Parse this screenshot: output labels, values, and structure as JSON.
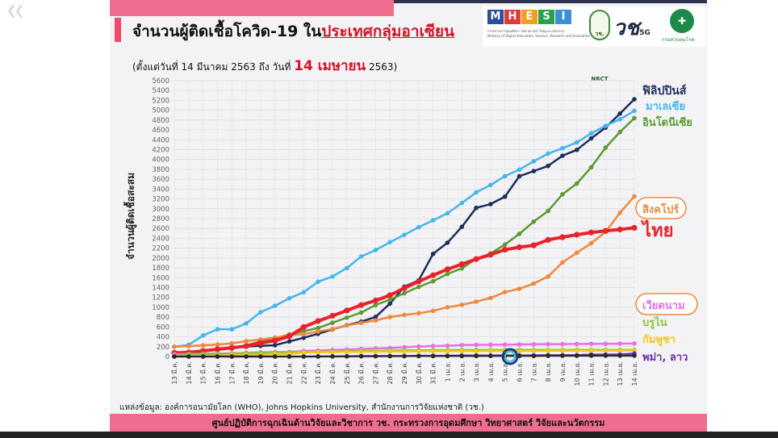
{
  "header": {
    "title_prefix": "จำนวนผู้ติดเชื้อโควิด-19 ใน",
    "title_highlight": "ประเทศกลุ่มอาเซียน",
    "subtitle_prefix": "(ตั้งแต่วันที่ 14 มีนาคม 2563 ถึง วันที่ ",
    "subtitle_date": "14 เมษายน",
    "subtitle_suffix": " 2563)"
  },
  "logos": {
    "mhesi_letters": [
      "M",
      "H",
      "E",
      "S",
      "I"
    ],
    "mhesi_colors": [
      "#2a4da0",
      "#e23a3a",
      "#f0a020",
      "#2aa04a",
      "#3a8fd8"
    ],
    "mhesi_caption_1": "กระทรวงการอุดมศึกษา วิทยาศาสตร์ วิจัยและนวัตกรรม",
    "mhesi_caption_2": "Ministry of Higher Education, Science, Research and Innovation",
    "nrct_text": "วช. NRCT",
    "brand_text": "วช",
    "brand_sub": "5G",
    "ddc_caption": "กรมควบคุมโรค"
  },
  "source": "แหล่งข้อมูล: องค์การอนามัยโลก (WHO), Johns Hopkins University, สำนักงานการวิจัยแห่งชาติ (วช.)",
  "footer": "ศูนย์ปฏิบัติการฉุกเฉินด้านวิจัยและวิชาการ   วช.   กระทรวงการอุดมศึกษา วิทยาศาสตร์ วิจัยและนวัตกรรม",
  "colors": {
    "accent_pink": "#ef6d8f",
    "title_red": "#d8102a",
    "dark_navy": "#2d3150"
  },
  "chart_data": {
    "type": "line",
    "ylabel": "จำนวนผู้ติดเชื้อสะสม",
    "ylim": [
      0,
      5600
    ],
    "ytick_step": 200,
    "grid": true,
    "categories": [
      "13 มี.ค.",
      "14 มี.ค.",
      "15 มี.ค.",
      "16 มี.ค.",
      "17 มี.ค.",
      "18 มี.ค.",
      "19 มี.ค.",
      "20 มี.ค.",
      "21 มี.ค.",
      "22 มี.ค.",
      "23 มี.ค.",
      "24 มี.ค.",
      "25 มี.ค.",
      "26 มี.ค.",
      "27 มี.ค.",
      "28 มี.ค.",
      "29 มี.ค.",
      "30 มี.ค.",
      "31 มี.ค.",
      "1 เม.ย.",
      "2 เม.ย.",
      "3 เม.ย.",
      "4 เม.ย.",
      "5 เม.ย.",
      "6 เม.ย.",
      "7 เม.ย.",
      "8 เม.ย.",
      "9 เม.ย.",
      "10 เม.ย.",
      "11 เม.ย.",
      "12 เม.ย.",
      "13 เม.ย.",
      "14 เม.ย."
    ],
    "series": [
      {
        "name": "ฟิลิปปินส์",
        "color": "#1f2f5c",
        "width": 2.5,
        "values": [
          64,
          64,
          111,
          140,
          187,
          202,
          217,
          230,
          307,
          380,
          462,
          552,
          636,
          707,
          803,
          1075,
          1418,
          1546,
          2084,
          2311,
          2633,
          3018,
          3094,
          3246,
          3660,
          3764,
          3870,
          4076,
          4195,
          4428,
          4648,
          4932,
          5223
        ]
      },
      {
        "name": "มาเลเซีย",
        "color": "#48b4ee",
        "width": 2.5,
        "values": [
          197,
          238,
          428,
          553,
          553,
          673,
          900,
          1030,
          1183,
          1306,
          1518,
          1624,
          1796,
          2031,
          2161,
          2320,
          2470,
          2626,
          2766,
          2908,
          3116,
          3333,
          3483,
          3662,
          3793,
          3963,
          4119,
          4228,
          4346,
          4530,
          4683,
          4817,
          4987
        ]
      },
      {
        "name": "อินโดนีเซีย",
        "color": "#5c9a32",
        "width": 2.5,
        "values": [
          69,
          96,
          117,
          134,
          172,
          227,
          309,
          369,
          450,
          514,
          579,
          686,
          790,
          893,
          1046,
          1155,
          1285,
          1414,
          1528,
          1677,
          1790,
          1986,
          2092,
          2273,
          2491,
          2738,
          2956,
          3293,
          3512,
          3842,
          4241,
          4557,
          4839
        ]
      },
      {
        "name": "สิงคโปร์",
        "color": "#f0873c",
        "width": 2.5,
        "values": [
          200,
          212,
          226,
          243,
          266,
          313,
          345,
          385,
          432,
          455,
          509,
          558,
          631,
          683,
          732,
          802,
          844,
          879,
          926,
          1000,
          1049,
          1114,
          1189,
          1309,
          1375,
          1481,
          1623,
          1910,
          2108,
          2299,
          2532,
          2918,
          3252
        ]
      },
      {
        "name": "ไทย",
        "color": "#e8222a",
        "width": 4,
        "values": [
          75,
          82,
          114,
          147,
          177,
          212,
          272,
          322,
          411,
          599,
          721,
          827,
          934,
          1045,
          1136,
          1245,
          1388,
          1524,
          1651,
          1771,
          1875,
          1978,
          2067,
          2169,
          2220,
          2258,
          2369,
          2423,
          2473,
          2518,
          2551,
          2579,
          2613
        ]
      },
      {
        "name": "เวียดนาม",
        "color": "#e870e0",
        "width": 2.5,
        "values": [
          47,
          53,
          56,
          61,
          66,
          76,
          85,
          91,
          94,
          113,
          123,
          134,
          141,
          153,
          163,
          174,
          188,
          203,
          212,
          218,
          233,
          237,
          240,
          241,
          245,
          249,
          251,
          251,
          255,
          257,
          258,
          262,
          265
        ]
      },
      {
        "name": "บรูไน",
        "color": "#88c540",
        "width": 2.5,
        "values": [
          11,
          50,
          50,
          54,
          56,
          68,
          75,
          78,
          83,
          88,
          91,
          104,
          109,
          114,
          115,
          120,
          126,
          127,
          129,
          131,
          133,
          134,
          135,
          135,
          135,
          136,
          136,
          135,
          136,
          136,
          136,
          136,
          136
        ]
      },
      {
        "name": "กัมพูชา",
        "color": "#f5c518",
        "width": 2.5,
        "values": [
          5,
          7,
          7,
          12,
          33,
          35,
          37,
          51,
          53,
          84,
          87,
          91,
          96,
          98,
          99,
          103,
          103,
          107,
          109,
          109,
          110,
          110,
          114,
          114,
          114,
          114,
          117,
          118,
          119,
          119,
          120,
          122,
          122
        ]
      },
      {
        "name": "พม่า",
        "color": "#6a2fb0",
        "width": 2.5,
        "values": [
          0,
          0,
          0,
          0,
          0,
          0,
          0,
          0,
          0,
          0,
          3,
          3,
          5,
          8,
          8,
          10,
          10,
          14,
          15,
          15,
          20,
          21,
          21,
          22,
          22,
          22,
          27,
          27,
          28,
          39,
          39,
          41,
          62
        ]
      },
      {
        "name": "ลาว",
        "color": "#2a2a2a",
        "width": 2,
        "values": [
          0,
          0,
          0,
          0,
          0,
          0,
          0,
          0,
          0,
          0,
          0,
          2,
          3,
          6,
          6,
          8,
          8,
          10,
          10,
          10,
          10,
          11,
          12,
          12,
          12,
          12,
          15,
          16,
          16,
          19,
          19,
          19,
          19
        ]
      }
    ],
    "legend": [
      {
        "label": "ฟิลิปปินส์",
        "color": "#1f2f5c"
      },
      {
        "label": "มาเลเซีย",
        "color": "#48b4ee"
      },
      {
        "label": "อินโดนีเซีย",
        "color": "#5c9a32"
      },
      {
        "label": "สิงคโปร์",
        "color": "#f0873c"
      },
      {
        "label": "ไทย",
        "color": "#e8222a"
      },
      {
        "label": "เวียดนาม",
        "color": "#e870e0"
      },
      {
        "label": "บรูไน",
        "color": "#88c540"
      },
      {
        "label": "กัมพูชา",
        "color": "#f5c518"
      },
      {
        "label": "พม่า, ลาว",
        "color": "#6a2fb0"
      }
    ]
  }
}
